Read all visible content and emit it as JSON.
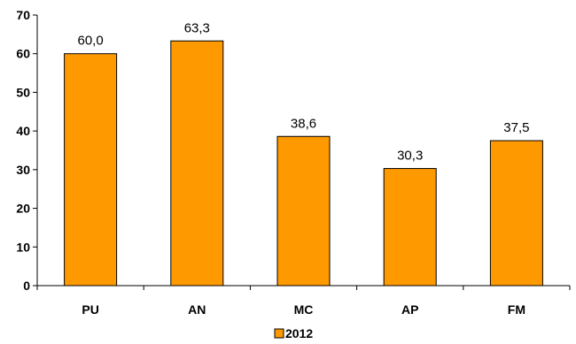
{
  "chart_data": {
    "type": "bar",
    "title": "",
    "xlabel": "",
    "ylabel": "",
    "categories": [
      "PU",
      "AN",
      "MC",
      "AP",
      "FM"
    ],
    "series": [
      {
        "name": "2012",
        "values": [
          60.0,
          63.3,
          38.6,
          30.3,
          37.5
        ],
        "labels": [
          "60,0",
          "63,3",
          "38,6",
          "30,3",
          "37,5"
        ],
        "color": "#FF9900"
      }
    ],
    "ylim": [
      0,
      70
    ],
    "yticks": [
      0,
      10,
      20,
      30,
      40,
      50,
      60,
      70
    ],
    "ytick_labels": [
      "0",
      "10",
      "20",
      "30",
      "40",
      "50",
      "60",
      "70"
    ],
    "grid": false,
    "legend": {
      "position": "bottom",
      "entries": [
        "2012"
      ]
    },
    "bar_outline_color": "#000000"
  }
}
